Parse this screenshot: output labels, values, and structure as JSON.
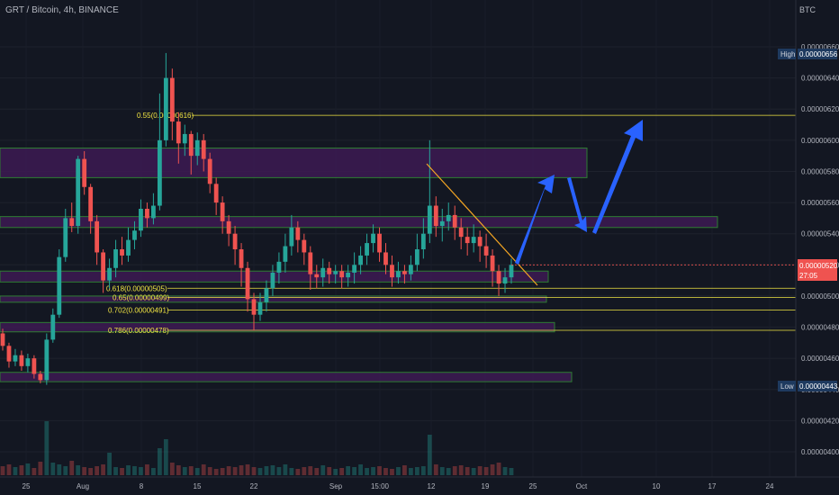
{
  "header": {
    "title": "GRT / Bitcoin, 4h, BINANCE",
    "currency": "BTC"
  },
  "colors": {
    "bg": "#131722",
    "up": "#26a69a",
    "down": "#ef5350",
    "zone_fill": "#3d1a52",
    "zone_stroke": "#2e7d32",
    "fib": "#f0e442",
    "arrow": "#2962ff",
    "trendline": "#f5a623",
    "last_price_bg": "#ef5350",
    "high_low_bg": "#1e3a5f"
  },
  "chart_data": {
    "type": "candlestick",
    "title": "GRT / Bitcoin, 4h, BINANCE",
    "y_unit": "BTC",
    "ylim": [
      3.92e-06,
      6.68e-06
    ],
    "x_ticks": [
      "25",
      "Aug",
      "8",
      "15",
      "22",
      "Sep",
      "15:00",
      "12",
      "19",
      "25",
      "Oct",
      "10",
      "17",
      "24"
    ],
    "y_ticks": [
      "0.00000660",
      "0.00000640",
      "0.00000620",
      "0.00000600",
      "0.00000580",
      "0.00000560",
      "0.00000540",
      "0.00000520",
      "0.00000500",
      "0.00000480",
      "0.00000460",
      "0.00000440",
      "0.00000420",
      "0.00000400"
    ],
    "high": {
      "label": "High",
      "value": "0.00000656"
    },
    "low": {
      "label": "Low",
      "value": "0.00000443"
    },
    "last_price": {
      "value": "0.00000520",
      "countdown": "27:05"
    },
    "fib_levels": [
      {
        "label": "0.5",
        "label_tail": "5(0.00000616)",
        "value": 6.16e-06
      },
      {
        "label": "0.618(0.00000505)",
        "value": 5.05e-06
      },
      {
        "label": "0.65(0.00000499)",
        "value": 4.99e-06
      },
      {
        "label": "0.702(0.00000491)",
        "value": 4.91e-06
      },
      {
        "label": "0.786(0.00000478)",
        "value": 4.78e-06
      }
    ],
    "zones": [
      {
        "top": 5.95e-06,
        "bottom": 5.76e-06
      },
      {
        "top": 5.51e-06,
        "bottom": 5.44e-06
      },
      {
        "top": 5.16e-06,
        "bottom": 5.09e-06
      },
      {
        "top": 5e-06,
        "bottom": 4.96e-06
      },
      {
        "top": 4.83e-06,
        "bottom": 4.77e-06
      },
      {
        "top": 4.51e-06,
        "bottom": 4.45e-06
      }
    ],
    "ohlc": [
      [
        476,
        468,
        479,
        465
      ],
      [
        468,
        458,
        470,
        454
      ],
      [
        458,
        462,
        466,
        455
      ],
      [
        462,
        455,
        465,
        452
      ],
      [
        455,
        460,
        463,
        451
      ],
      [
        460,
        450,
        462,
        447
      ],
      [
        450,
        446,
        452,
        444
      ],
      [
        446,
        472,
        476,
        443
      ],
      [
        472,
        488,
        492,
        470
      ],
      [
        488,
        525,
        530,
        486
      ],
      [
        525,
        550,
        556,
        522
      ],
      [
        550,
        545,
        560,
        541
      ],
      [
        545,
        588,
        590,
        540
      ],
      [
        588,
        570,
        593,
        565
      ],
      [
        570,
        548,
        572,
        540
      ],
      [
        548,
        528,
        552,
        520
      ],
      [
        528,
        510,
        530,
        502
      ],
      [
        510,
        518,
        524,
        505
      ],
      [
        518,
        530,
        536,
        512
      ],
      [
        530,
        526,
        538,
        520
      ],
      [
        526,
        536,
        544,
        522
      ],
      [
        536,
        542,
        548,
        530
      ],
      [
        542,
        556,
        562,
        538
      ],
      [
        556,
        550,
        560,
        544
      ],
      [
        550,
        558,
        566,
        546
      ],
      [
        558,
        600,
        630,
        555
      ],
      [
        600,
        640,
        656,
        596
      ],
      [
        640,
        612,
        646,
        600
      ],
      [
        612,
        598,
        618,
        585
      ],
      [
        598,
        604,
        610,
        590
      ],
      [
        604,
        590,
        606,
        578
      ],
      [
        590,
        600,
        605,
        584
      ],
      [
        600,
        588,
        604,
        580
      ],
      [
        588,
        572,
        592,
        566
      ],
      [
        572,
        560,
        576,
        552
      ],
      [
        560,
        548,
        564,
        540
      ],
      [
        548,
        540,
        552,
        532
      ],
      [
        540,
        530,
        545,
        520
      ],
      [
        530,
        518,
        534,
        506
      ],
      [
        518,
        498,
        522,
        490
      ],
      [
        498,
        488,
        502,
        478
      ],
      [
        488,
        496,
        502,
        484
      ],
      [
        496,
        505,
        510,
        490
      ],
      [
        505,
        515,
        520,
        500
      ],
      [
        515,
        522,
        528,
        508
      ],
      [
        522,
        532,
        540,
        515
      ],
      [
        532,
        544,
        552,
        526
      ],
      [
        544,
        536,
        548,
        528
      ],
      [
        536,
        528,
        540,
        520
      ],
      [
        528,
        514,
        532,
        504
      ],
      [
        514,
        512,
        520,
        505
      ],
      [
        512,
        518,
        524,
        506
      ],
      [
        518,
        514,
        522,
        508
      ],
      [
        514,
        516,
        520,
        508
      ],
      [
        516,
        512,
        520,
        505
      ],
      [
        512,
        515,
        520,
        506
      ],
      [
        515,
        520,
        528,
        508
      ],
      [
        520,
        526,
        532,
        514
      ],
      [
        526,
        534,
        540,
        520
      ],
      [
        534,
        540,
        546,
        528
      ],
      [
        540,
        528,
        544,
        522
      ],
      [
        528,
        520,
        534,
        514
      ],
      [
        520,
        512,
        526,
        506
      ],
      [
        512,
        516,
        522,
        508
      ],
      [
        516,
        514,
        520,
        508
      ],
      [
        514,
        520,
        526,
        510
      ],
      [
        520,
        530,
        540,
        516
      ],
      [
        530,
        540,
        550,
        524
      ],
      [
        540,
        558,
        600,
        534
      ],
      [
        558,
        545,
        564,
        538
      ],
      [
        545,
        548,
        556,
        535
      ],
      [
        548,
        552,
        560,
        542
      ],
      [
        552,
        544,
        558,
        536
      ],
      [
        544,
        538,
        550,
        530
      ],
      [
        538,
        534,
        544,
        526
      ],
      [
        534,
        538,
        546,
        528
      ],
      [
        538,
        532,
        542,
        522
      ],
      [
        532,
        526,
        540,
        518
      ],
      [
        526,
        516,
        530,
        506
      ],
      [
        516,
        508,
        520,
        500
      ],
      [
        508,
        512,
        518,
        502
      ],
      [
        512,
        520,
        524,
        508
      ]
    ],
    "volume": [
      10,
      12,
      9,
      11,
      13,
      8,
      15,
      60,
      14,
      12,
      10,
      16,
      11,
      9,
      8,
      10,
      12,
      25,
      9,
      8,
      11,
      10,
      9,
      12,
      8,
      30,
      40,
      14,
      11,
      9,
      10,
      8,
      12,
      9,
      7,
      8,
      10,
      9,
      11,
      12,
      9,
      8,
      10,
      11,
      9,
      12,
      8,
      7,
      9,
      10,
      8,
      11,
      9,
      7,
      8,
      10,
      9,
      12,
      8,
      9,
      10,
      8,
      7,
      9,
      11,
      8,
      9,
      10,
      45,
      12,
      9,
      8,
      10,
      11,
      9,
      8,
      10,
      9,
      12,
      14,
      9,
      8
    ]
  }
}
